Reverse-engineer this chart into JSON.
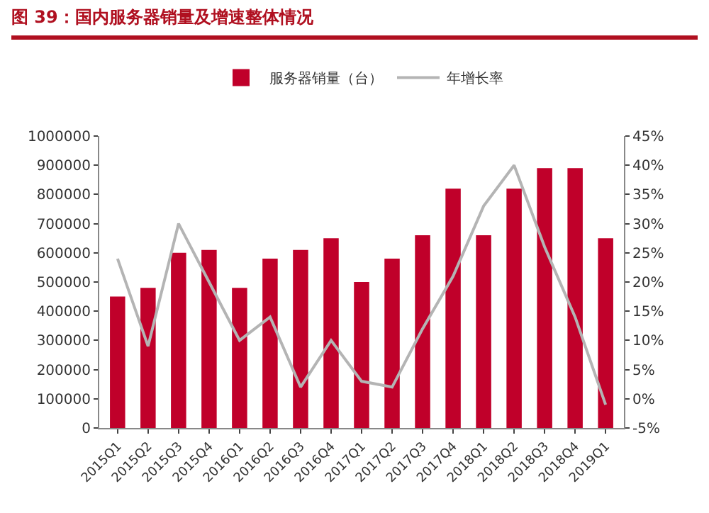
{
  "chart_data": {
    "type": "bar",
    "title": "图 39：国内服务器销量及增速整体情况",
    "categories": [
      "2015Q1",
      "2015Q2",
      "2015Q3",
      "2015Q4",
      "2016Q1",
      "2016Q2",
      "2016Q3",
      "2016Q4",
      "2017Q1",
      "2017Q2",
      "2017Q3",
      "2017Q4",
      "2018Q1",
      "2018Q2",
      "2018Q3",
      "2018Q4",
      "2019Q1"
    ],
    "series": [
      {
        "name": "服务器销量（台）",
        "color": "#c0002a",
        "values": [
          450000,
          480000,
          600000,
          610000,
          480000,
          580000,
          610000,
          650000,
          500000,
          580000,
          660000,
          820000,
          660000,
          820000,
          890000,
          890000,
          650000
        ]
      },
      {
        "name": "年增长率",
        "type": "line",
        "axis": "y2",
        "color": "#b4b4b4",
        "values": [
          24,
          9,
          30,
          20,
          10,
          14,
          2,
          10,
          3,
          2,
          12,
          21,
          33,
          40,
          26,
          14,
          -1
        ]
      }
    ],
    "ylim": [
      0,
      1000000
    ],
    "yticks": [
      0,
      100000,
      200000,
      300000,
      400000,
      500000,
      600000,
      700000,
      800000,
      900000,
      1000000
    ],
    "y2lim": [
      -5,
      45
    ],
    "y2ticks": [
      {
        "value": -5,
        "label": "-5%"
      },
      {
        "value": 0,
        "label": "0%"
      },
      {
        "value": 5,
        "label": "5%"
      },
      {
        "value": 10,
        "label": "10%"
      },
      {
        "value": 15,
        "label": "15%"
      },
      {
        "value": 20,
        "label": "20%"
      },
      {
        "value": 25,
        "label": "25%"
      },
      {
        "value": 30,
        "label": "30%"
      },
      {
        "value": 35,
        "label": "35%"
      },
      {
        "value": 40,
        "label": "40%"
      },
      {
        "value": 45,
        "label": "45%"
      }
    ],
    "grid": false,
    "legend": "top",
    "marker": "none",
    "line_style": "solid"
  }
}
